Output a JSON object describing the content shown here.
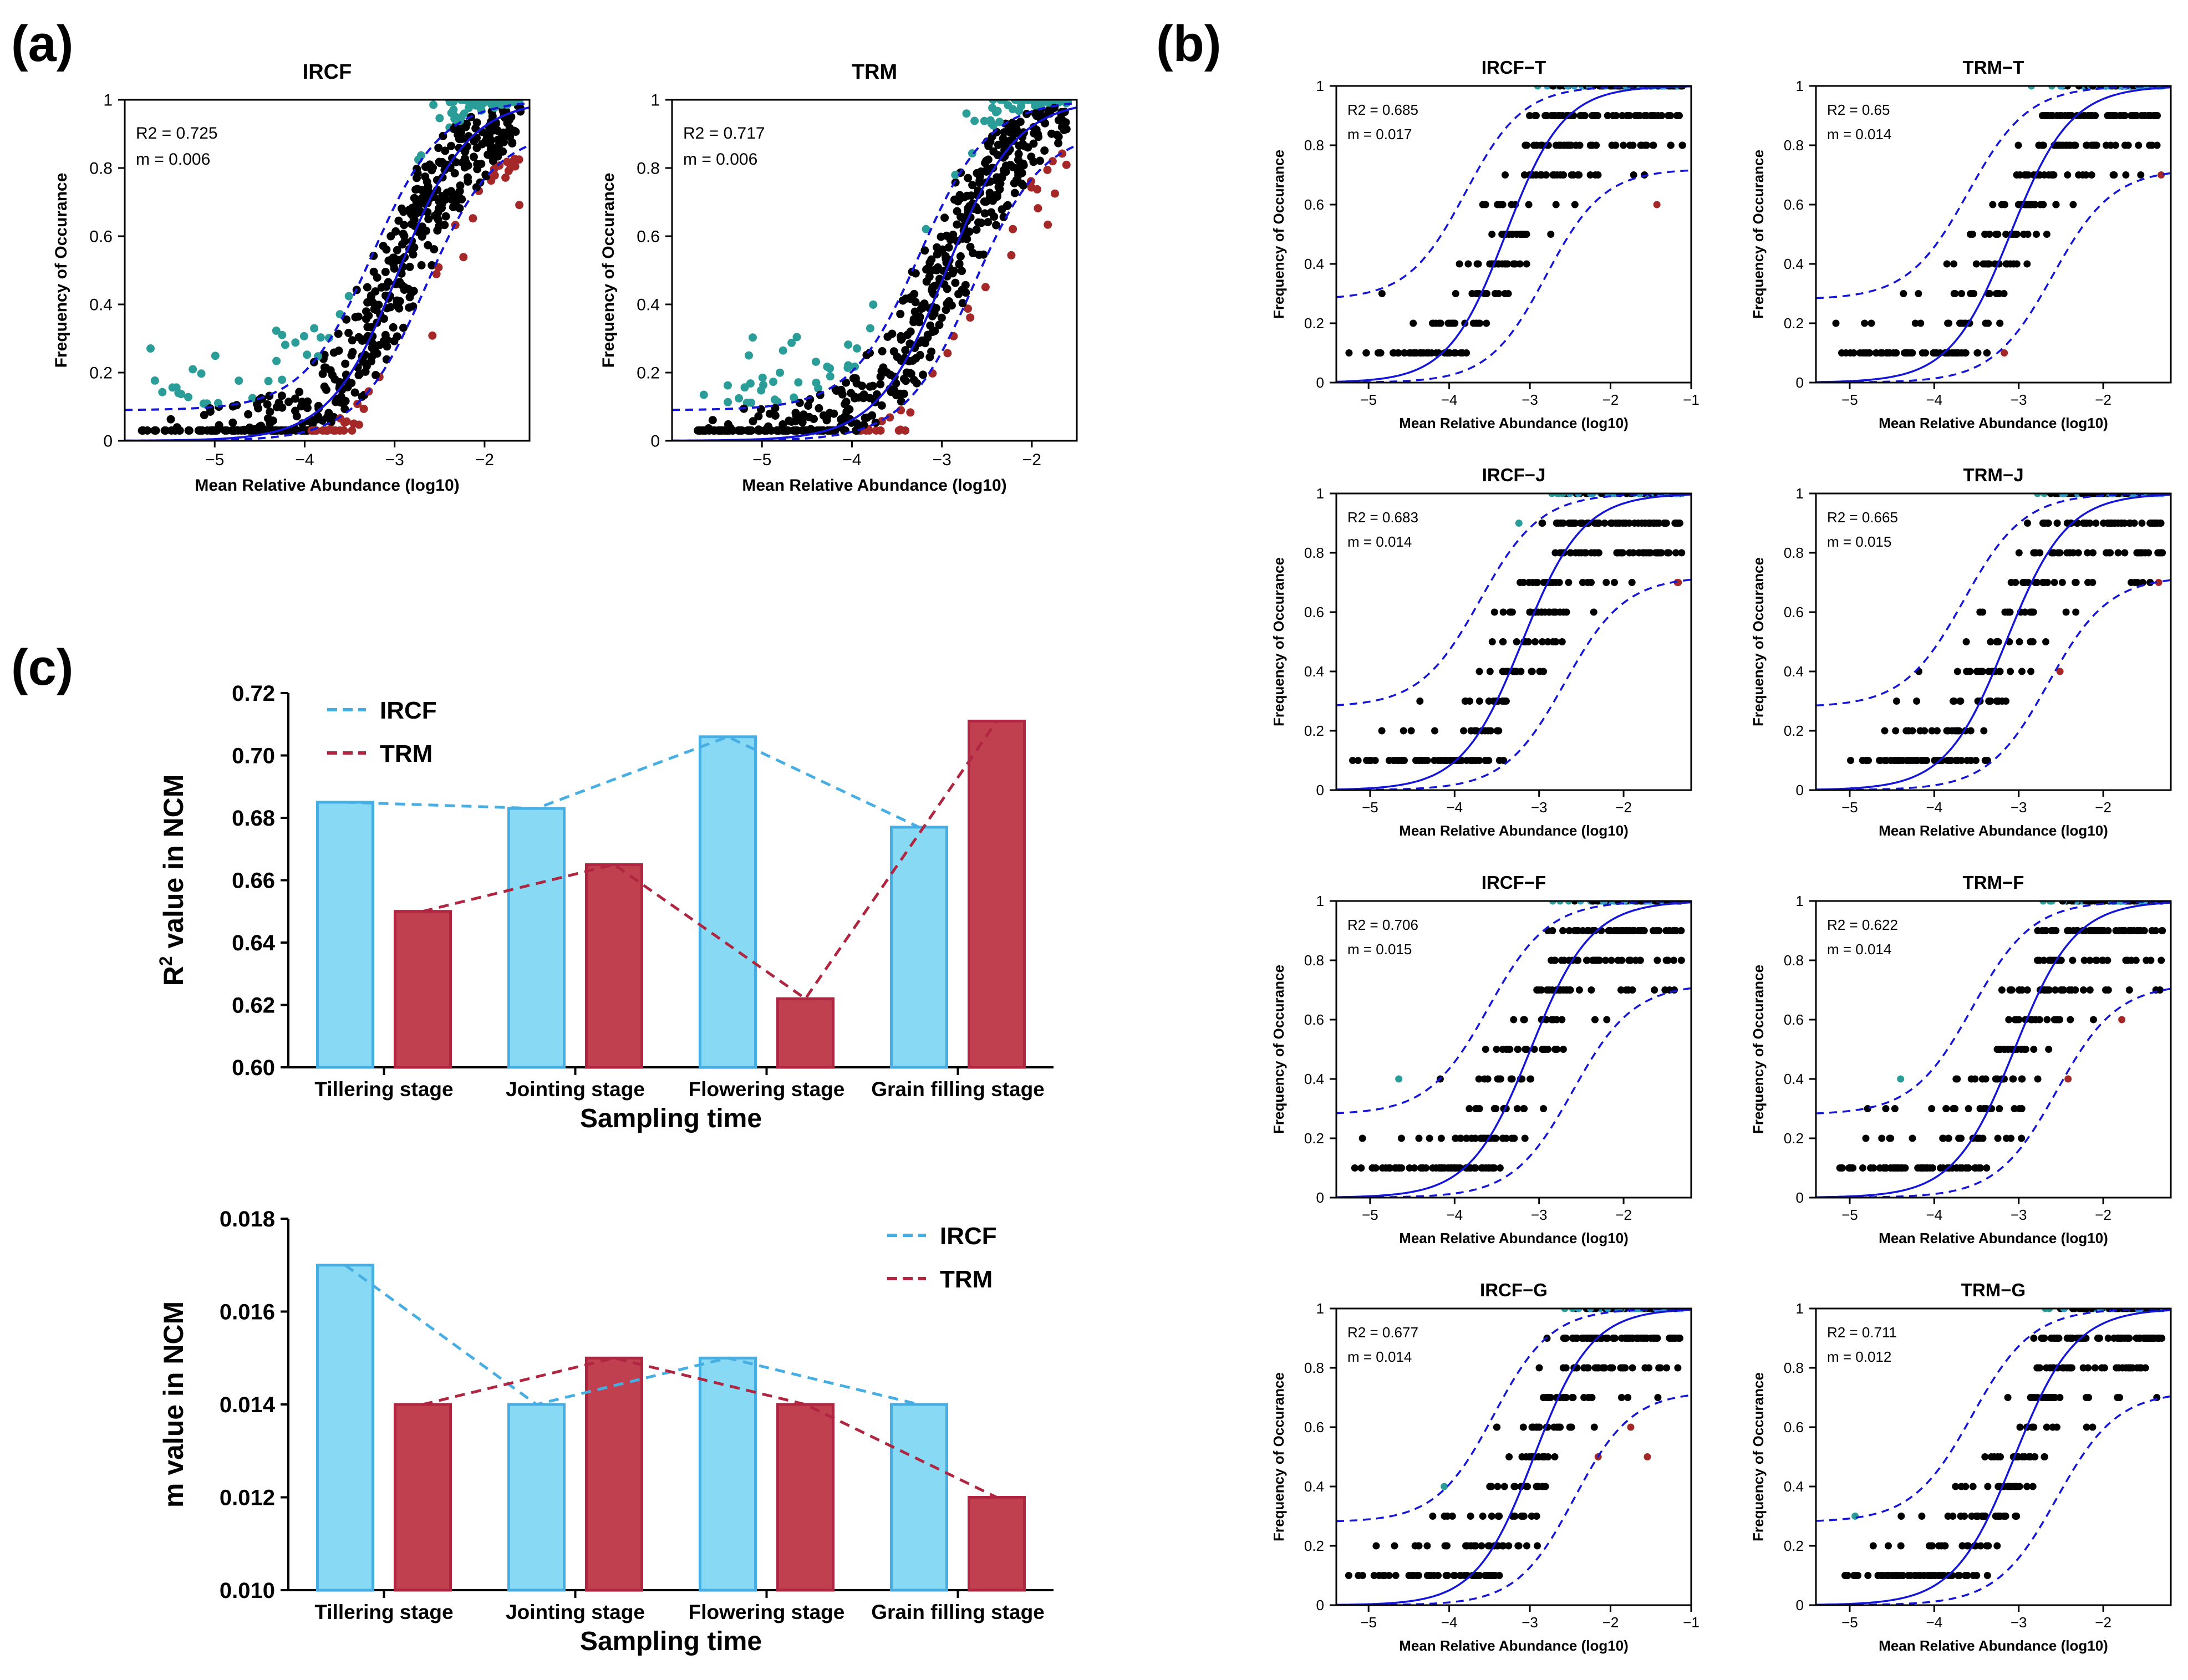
{
  "panel_labels": {
    "a": "(a)",
    "b": "(b)",
    "c": "(c)"
  },
  "colors": {
    "neutral": "#000000",
    "above": "#2a9d98",
    "below": "#a52828",
    "fit": "#1515d8",
    "above_b": "#30a0c8",
    "ircf_fill": "#87d9f4",
    "ircf_stroke": "#47aee3",
    "trm_fill": "#c0404f",
    "trm_stroke": "#b02540"
  },
  "ncm_axis_labels": {
    "x": "Mean Relative Abundance (log10)",
    "y": "Frequency of Occurance"
  },
  "chart_data": [
    {
      "id": "a-IRCF",
      "type": "scatter",
      "title": "IRCF",
      "xlabel": "Mean Relative Abundance (log10)",
      "ylabel": "Frequency of Occurance",
      "xlim": [
        -6,
        -1.5
      ],
      "ylim": [
        0,
        1
      ],
      "xticks": [
        -5,
        -4,
        -3,
        -2
      ],
      "xtick_labels": [
        "−5",
        "−4",
        "−3",
        "−2"
      ],
      "yticks": [
        0,
        0.2,
        0.4,
        0.6,
        0.8,
        1
      ],
      "ytick_labels": [
        "0",
        "0.2",
        "0.4",
        "0.6",
        "0.8",
        "1"
      ],
      "stats": [
        "R2 = 0.725",
        "m = 0.006"
      ],
      "model": {
        "mid": -2.95,
        "k": 2.6,
        "lo_floor": 0.09,
        "hi_cap": 0.91,
        "band_shift": 0.3
      },
      "points": {
        "xmin": -5.95,
        "xmax": -1.6,
        "n": 640,
        "seed": 11
      }
    },
    {
      "id": "a-TRM",
      "type": "scatter",
      "title": "TRM",
      "xlabel": "Mean Relative Abundance (log10)",
      "ylabel": "Frequency of Occurance",
      "xlim": [
        -6,
        -1.5
      ],
      "ylim": [
        0,
        1
      ],
      "xticks": [
        -5,
        -4,
        -3,
        -2
      ],
      "xtick_labels": [
        "−5",
        "−4",
        "−3",
        "−2"
      ],
      "yticks": [
        0,
        0.2,
        0.4,
        0.6,
        0.8,
        1
      ],
      "ytick_labels": [
        "0",
        "0.2",
        "0.4",
        "0.6",
        "0.8",
        "1"
      ],
      "stats": [
        "R2 = 0.717",
        "m = 0.006"
      ],
      "model": {
        "mid": -2.95,
        "k": 2.6,
        "lo_floor": 0.09,
        "hi_cap": 0.91,
        "band_shift": 0.3
      },
      "points": {
        "xmin": -5.95,
        "xmax": -1.6,
        "n": 640,
        "seed": 23
      }
    },
    {
      "id": "b-IRCF-T",
      "type": "scatter",
      "title": "IRCF−T",
      "xlabel": "Mean Relative Abundance (log10)",
      "ylabel": "Frequency of Occurance",
      "xlim": [
        -5.4,
        -1
      ],
      "ylim": [
        0,
        1
      ],
      "xticks": [
        -5,
        -4,
        -3,
        -2,
        -1
      ],
      "xtick_labels": [
        "−5",
        "−4",
        "−3",
        "−2",
        "−1"
      ],
      "yticks": [
        0,
        0.2,
        0.4,
        0.6,
        0.8,
        1
      ],
      "ytick_labels": [
        "0",
        "0.2",
        "0.4",
        "0.6",
        "0.8",
        "1"
      ],
      "stats": [
        "R2 = 0.685",
        "m = 0.017"
      ],
      "model": {
        "mid": -3.3,
        "k": 2.8,
        "lo_floor": 0.28,
        "hi_cap": 0.72,
        "band_shift": 0.5
      },
      "points": {
        "xmin": -5.3,
        "xmax": -1.1,
        "n": 360,
        "seed": 31,
        "discrete": 10
      }
    },
    {
      "id": "b-TRM-T",
      "type": "scatter",
      "title": "TRM−T",
      "xlabel": "Mean Relative Abundance (log10)",
      "ylabel": "Frequency of Occurance",
      "xlim": [
        -5.4,
        -1.2
      ],
      "ylim": [
        0,
        1
      ],
      "xticks": [
        -5,
        -4,
        -3,
        -2
      ],
      "xtick_labels": [
        "−5",
        "−4",
        "−3",
        "−2"
      ],
      "yticks": [
        0,
        0.2,
        0.4,
        0.6,
        0.8,
        1
      ],
      "ytick_labels": [
        "0",
        "0.2",
        "0.4",
        "0.6",
        "0.8",
        "1"
      ],
      "stats": [
        "R2 = 0.65",
        "m = 0.014"
      ],
      "model": {
        "mid": -3.1,
        "k": 2.8,
        "lo_floor": 0.28,
        "hi_cap": 0.72,
        "band_shift": 0.5
      },
      "points": {
        "xmin": -5.3,
        "xmax": -1.3,
        "n": 360,
        "seed": 37,
        "discrete": 10
      }
    },
    {
      "id": "b-IRCF-J",
      "type": "scatter",
      "title": "IRCF−J",
      "xlabel": "Mean Relative Abundance (log10)",
      "ylabel": "Frequency of Occurance",
      "xlim": [
        -5.4,
        -1.2
      ],
      "ylim": [
        0,
        1
      ],
      "xticks": [
        -5,
        -4,
        -3,
        -2
      ],
      "xtick_labels": [
        "−5",
        "−4",
        "−3",
        "−2"
      ],
      "yticks": [
        0,
        0.2,
        0.4,
        0.6,
        0.8,
        1
      ],
      "ytick_labels": [
        "0",
        "0.2",
        "0.4",
        "0.6",
        "0.8",
        "1"
      ],
      "stats": [
        "R2 = 0.683",
        "m = 0.014"
      ],
      "model": {
        "mid": -3.2,
        "k": 2.8,
        "lo_floor": 0.28,
        "hi_cap": 0.72,
        "band_shift": 0.5
      },
      "points": {
        "xmin": -5.3,
        "xmax": -1.3,
        "n": 360,
        "seed": 41,
        "discrete": 10
      }
    },
    {
      "id": "b-TRM-J",
      "type": "scatter",
      "title": "TRM−J",
      "xlabel": "Mean Relative Abundance (log10)",
      "ylabel": "Frequency of Occurance",
      "xlim": [
        -5.4,
        -1.2
      ],
      "ylim": [
        0,
        1
      ],
      "xticks": [
        -5,
        -4,
        -3,
        -2
      ],
      "xtick_labels": [
        "−5",
        "−4",
        "−3",
        "−2"
      ],
      "yticks": [
        0,
        0.2,
        0.4,
        0.6,
        0.8,
        1
      ],
      "ytick_labels": [
        "0",
        "0.2",
        "0.4",
        "0.6",
        "0.8",
        "1"
      ],
      "stats": [
        "R2 = 0.665",
        "m = 0.015"
      ],
      "model": {
        "mid": -3.15,
        "k": 2.8,
        "lo_floor": 0.28,
        "hi_cap": 0.72,
        "band_shift": 0.5
      },
      "points": {
        "xmin": -5.3,
        "xmax": -1.3,
        "n": 360,
        "seed": 43,
        "discrete": 10
      }
    },
    {
      "id": "b-IRCF-F",
      "type": "scatter",
      "title": "IRCF−F",
      "xlabel": "Mean Relative Abundance (log10)",
      "ylabel": "Frequency of Occurance",
      "xlim": [
        -5.4,
        -1.2
      ],
      "ylim": [
        0,
        1
      ],
      "xticks": [
        -5,
        -4,
        -3,
        -2
      ],
      "xtick_labels": [
        "−5",
        "−4",
        "−3",
        "−2"
      ],
      "yticks": [
        0,
        0.2,
        0.4,
        0.6,
        0.8,
        1
      ],
      "ytick_labels": [
        "0",
        "0.2",
        "0.4",
        "0.6",
        "0.8",
        "1"
      ],
      "stats": [
        "R2 = 0.706",
        "m = 0.015"
      ],
      "model": {
        "mid": -3.1,
        "k": 2.8,
        "lo_floor": 0.28,
        "hi_cap": 0.72,
        "band_shift": 0.5
      },
      "points": {
        "xmin": -5.3,
        "xmax": -1.3,
        "n": 360,
        "seed": 47,
        "discrete": 10
      }
    },
    {
      "id": "b-TRM-F",
      "type": "scatter",
      "title": "TRM−F",
      "xlabel": "Mean Relative Abundance (log10)",
      "ylabel": "Frequency of Occurance",
      "xlim": [
        -5.4,
        -1.2
      ],
      "ylim": [
        0,
        1
      ],
      "xticks": [
        -5,
        -4,
        -3,
        -2
      ],
      "xtick_labels": [
        "−5",
        "−4",
        "−3",
        "−2"
      ],
      "yticks": [
        0,
        0.2,
        0.4,
        0.6,
        0.8,
        1
      ],
      "ytick_labels": [
        "0",
        "0.2",
        "0.4",
        "0.6",
        "0.8",
        "1"
      ],
      "stats": [
        "R2 = 0.622",
        "m = 0.014"
      ],
      "model": {
        "mid": -3.05,
        "k": 2.8,
        "lo_floor": 0.28,
        "hi_cap": 0.72,
        "band_shift": 0.5
      },
      "points": {
        "xmin": -5.3,
        "xmax": -1.3,
        "n": 360,
        "seed": 53,
        "discrete": 10
      }
    },
    {
      "id": "b-IRCF-G",
      "type": "scatter",
      "title": "IRCF−G",
      "xlabel": "Mean Relative Abundance (log10)",
      "ylabel": "Frequency of Occurance",
      "xlim": [
        -5.4,
        -1
      ],
      "ylim": [
        0,
        1
      ],
      "xticks": [
        -5,
        -4,
        -3,
        -2,
        -1
      ],
      "xtick_labels": [
        "−5",
        "−4",
        "−3",
        "−2",
        "−1"
      ],
      "yticks": [
        0,
        0.2,
        0.4,
        0.6,
        0.8,
        1
      ],
      "ytick_labels": [
        "0",
        "0.2",
        "0.4",
        "0.6",
        "0.8",
        "1"
      ],
      "stats": [
        "R2 = 0.677",
        "m = 0.014"
      ],
      "model": {
        "mid": -2.95,
        "k": 2.8,
        "lo_floor": 0.28,
        "hi_cap": 0.72,
        "band_shift": 0.5
      },
      "points": {
        "xmin": -5.3,
        "xmax": -1.1,
        "n": 360,
        "seed": 59,
        "discrete": 10
      }
    },
    {
      "id": "b-TRM-G",
      "type": "scatter",
      "title": "TRM−G",
      "xlabel": "Mean Relative Abundance (log10)",
      "ylabel": "Frequency of Occurance",
      "xlim": [
        -5.4,
        -1.2
      ],
      "ylim": [
        0,
        1
      ],
      "xticks": [
        -5,
        -4,
        -3,
        -2
      ],
      "xtick_labels": [
        "−5",
        "−4",
        "−3",
        "−2"
      ],
      "yticks": [
        0,
        0.2,
        0.4,
        0.6,
        0.8,
        1
      ],
      "ytick_labels": [
        "0",
        "0.2",
        "0.4",
        "0.6",
        "0.8",
        "1"
      ],
      "stats": [
        "R2 = 0.711",
        "m = 0.012"
      ],
      "model": {
        "mid": -3.05,
        "k": 2.8,
        "lo_floor": 0.28,
        "hi_cap": 0.72,
        "band_shift": 0.5
      },
      "points": {
        "xmin": -5.3,
        "xmax": -1.3,
        "n": 360,
        "seed": 61,
        "discrete": 10
      }
    },
    {
      "id": "c-R2",
      "type": "bar",
      "title": "",
      "categories": [
        "Tillering stage",
        "Jointing stage",
        "Flowering stage",
        "Grain filling stage"
      ],
      "series": [
        {
          "name": "IRCF",
          "values": [
            0.685,
            0.683,
            0.706,
            0.677
          ]
        },
        {
          "name": "TRM",
          "values": [
            0.65,
            0.665,
            0.622,
            0.711
          ]
        }
      ],
      "xlabel": "Sampling time",
      "ylabel_main": "R",
      "ylabel_sup": "2",
      "ylabel_rest": " value in NCM",
      "ylim": [
        0.6,
        0.72
      ],
      "yticks": [
        0.6,
        0.62,
        0.64,
        0.66,
        0.68,
        0.7,
        0.72
      ],
      "ytick_labels": [
        "0.60",
        "0.62",
        "0.64",
        "0.66",
        "0.68",
        "0.70",
        "0.72"
      ],
      "legend": [
        "IRCF",
        "TRM"
      ],
      "legend_position": "top-left"
    },
    {
      "id": "c-m",
      "type": "bar",
      "title": "",
      "categories": [
        "Tillering stage",
        "Jointing stage",
        "Flowering stage",
        "Grain filling stage"
      ],
      "series": [
        {
          "name": "IRCF",
          "values": [
            0.017,
            0.014,
            0.015,
            0.014
          ]
        },
        {
          "name": "TRM",
          "values": [
            0.014,
            0.015,
            0.014,
            0.012
          ]
        }
      ],
      "xlabel": "Sampling time",
      "ylabel": "m value in NCM",
      "ylim": [
        0.01,
        0.018
      ],
      "yticks": [
        0.01,
        0.012,
        0.014,
        0.016,
        0.018
      ],
      "ytick_labels": [
        "0.010",
        "0.012",
        "0.014",
        "0.016",
        "0.018"
      ],
      "legend": [
        "IRCF",
        "TRM"
      ],
      "legend_position": "top-right"
    }
  ]
}
